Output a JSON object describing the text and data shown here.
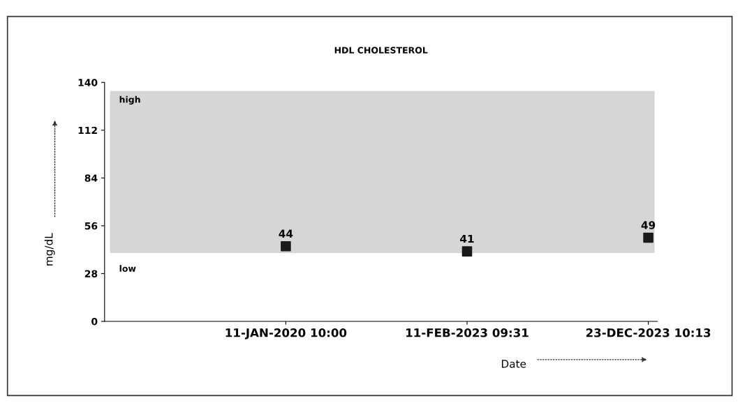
{
  "chart_data": {
    "type": "scatter",
    "title": "HDL CHOLESTEROL",
    "xlabel": "Date",
    "ylabel": "mg/dL",
    "categories": [
      "11-JAN-2020 10:00",
      "11-FEB-2023 09:31",
      "23-DEC-2023 10:13"
    ],
    "series": [
      {
        "color": "#1a1a1a",
        "values": [
          44,
          41,
          49
        ]
      }
    ],
    "ylim": [
      0,
      140
    ],
    "yticks": [
      0,
      28,
      56,
      84,
      112,
      140
    ],
    "bands": [
      {
        "axis": "y",
        "from": 40,
        "to": 135,
        "label": "high",
        "color": "#d6d6d6"
      }
    ],
    "annotations": [
      "low"
    ],
    "marker": "square",
    "data_labels": true,
    "grid": false,
    "legend": false
  }
}
